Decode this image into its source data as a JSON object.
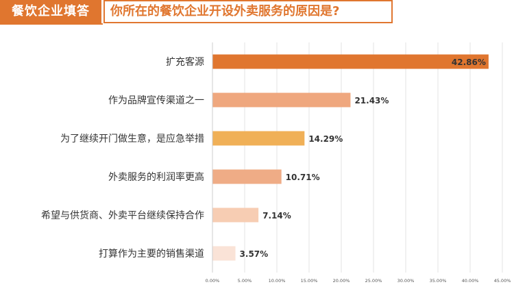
{
  "header": {
    "tag": "餐饮企业填答",
    "question": "你所在的餐饮企业开设外卖服务的原因是?"
  },
  "chart_data": {
    "type": "bar",
    "orientation": "horizontal",
    "categories": [
      "扩充客源",
      "作为品牌宣传渠道之一",
      "为了继续开门做生意，是应急举措",
      "外卖服务的利润率更高",
      "希望与供货商、外卖平台继续保持合作",
      "打算作为主要的销售渠道"
    ],
    "values": [
      42.86,
      21.43,
      14.29,
      10.71,
      7.14,
      3.57
    ],
    "value_labels": [
      "42.86%",
      "21.43%",
      "14.29%",
      "10.71%",
      "7.14%",
      "3.57%"
    ],
    "colors": [
      "#e0762f",
      "#efa77e",
      "#f0b057",
      "#efac86",
      "#f7cdb3",
      "#fae3d7"
    ],
    "xlim": [
      0,
      45
    ],
    "x_ticks": [
      "0.00%",
      "5.00%",
      "10.00%",
      "15.00%",
      "20.00%",
      "25.00%",
      "30.00%",
      "35.00%",
      "40.00%",
      "45.00%"
    ],
    "grid": true,
    "title": "",
    "xlabel": "",
    "ylabel": ""
  }
}
